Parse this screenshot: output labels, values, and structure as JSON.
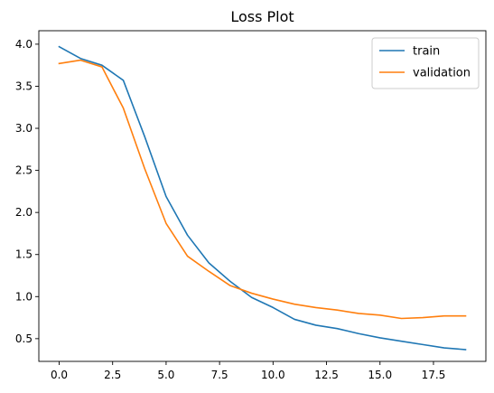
{
  "chart_data": {
    "type": "line",
    "title": "Loss Plot",
    "xlabel": "",
    "ylabel": "",
    "xlim": [
      -0.95,
      19.95
    ],
    "ylim": [
      0.23,
      4.16
    ],
    "xticks": [
      0.0,
      2.5,
      5.0,
      7.5,
      10.0,
      12.5,
      15.0,
      17.5
    ],
    "xtick_labels": [
      "0.0",
      "2.5",
      "5.0",
      "7.5",
      "10.0",
      "12.5",
      "15.0",
      "17.5"
    ],
    "yticks": [
      0.5,
      1.0,
      1.5,
      2.0,
      2.5,
      3.0,
      3.5,
      4.0
    ],
    "ytick_labels": [
      "0.5",
      "1.0",
      "1.5",
      "2.0",
      "2.5",
      "3.0",
      "3.5",
      "4.0"
    ],
    "grid": false,
    "legend_position": "top-right",
    "x": [
      0,
      1,
      2,
      3,
      4,
      5,
      6,
      7,
      8,
      9,
      10,
      11,
      12,
      13,
      14,
      15,
      16,
      17,
      18,
      19
    ],
    "series": [
      {
        "name": "train",
        "color": "#1f77b4",
        "values": [
          3.97,
          3.83,
          3.75,
          3.57,
          2.9,
          2.19,
          1.73,
          1.4,
          1.18,
          0.99,
          0.87,
          0.73,
          0.66,
          0.62,
          0.56,
          0.51,
          0.47,
          0.43,
          0.39,
          0.37
        ]
      },
      {
        "name": "validation",
        "color": "#ff7f0e",
        "values": [
          3.77,
          3.81,
          3.73,
          3.24,
          2.52,
          1.87,
          1.48,
          1.3,
          1.13,
          1.04,
          0.97,
          0.91,
          0.87,
          0.84,
          0.8,
          0.78,
          0.74,
          0.75,
          0.77,
          0.77
        ]
      }
    ]
  }
}
